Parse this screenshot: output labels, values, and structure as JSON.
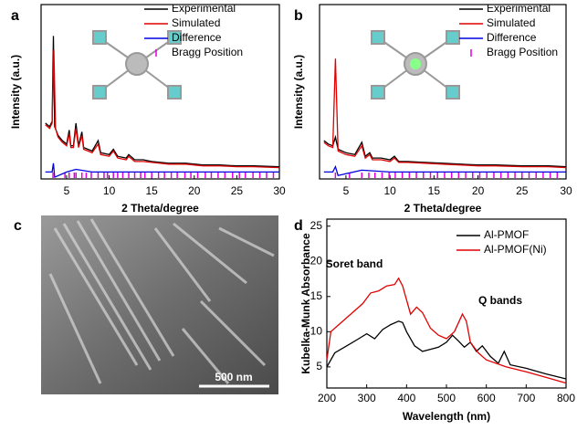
{
  "chart_data": [
    {
      "panel": "a",
      "type": "line",
      "xlabel": "2 Theta/degree",
      "ylabel": "Intensity (a.u.)",
      "xlim": [
        2,
        30
      ],
      "xticks": [
        5,
        10,
        15,
        20,
        25,
        30
      ],
      "ylim": [
        0,
        100
      ],
      "series": [
        {
          "name": "Experimental",
          "color": "#000000",
          "x": [
            2.5,
            3,
            3.3,
            3.45,
            3.6,
            4,
            4.5,
            5,
            5.3,
            5.5,
            5.8,
            6.1,
            6.4,
            6.8,
            7,
            7.5,
            8,
            8.7,
            9,
            10,
            10.5,
            11,
            12,
            12.3,
            13,
            14,
            15,
            17,
            19,
            21,
            23,
            25,
            27,
            30
          ],
          "values": [
            32,
            30,
            33,
            82,
            30,
            25,
            22,
            20,
            28,
            19,
            19,
            32,
            19,
            27,
            18,
            17,
            16,
            22,
            15,
            14,
            17,
            13,
            12,
            14,
            11,
            11,
            10,
            9,
            9,
            8,
            8,
            7.5,
            7.5,
            7
          ]
        },
        {
          "name": "Simulated",
          "color": "#e00000",
          "x": [
            2.5,
            3,
            3.3,
            3.5,
            3.7,
            4,
            4.5,
            5,
            5.3,
            5.5,
            5.8,
            6.1,
            6.4,
            6.8,
            7,
            7.5,
            8,
            8.7,
            9,
            10,
            10.5,
            11,
            12,
            12.3,
            13,
            14,
            15,
            17,
            19,
            21,
            23,
            25,
            27,
            30
          ],
          "values": [
            31,
            29,
            32,
            74,
            29,
            24,
            21,
            19,
            26,
            18,
            18,
            29,
            18,
            25,
            17,
            16,
            15,
            20,
            14,
            13,
            16,
            12,
            11,
            13,
            10,
            10,
            9.5,
            8.5,
            8.5,
            7.5,
            7.5,
            7,
            7,
            6.5
          ]
        },
        {
          "name": "Difference",
          "color": "#0000e0",
          "x": [
            2.5,
            3.3,
            3.45,
            3.6,
            5,
            6.1,
            8,
            10,
            15,
            20,
            30
          ],
          "values": [
            4,
            4,
            9,
            1,
            4,
            5.5,
            4,
            4,
            4,
            4,
            4
          ]
        }
      ],
      "bragg": {
        "name": "Bragg Position",
        "color": "#e000e0",
        "x": [
          3.4,
          4.8,
          5.3,
          5.9,
          6.1,
          6.8,
          7.3,
          7.9,
          8.7,
          9.4,
          9.8,
          10.5,
          11,
          11.6,
          12.3,
          13,
          13.7,
          14.2,
          15,
          15.8,
          16.5,
          17.3,
          18,
          18.9,
          19.6,
          20.4,
          21.3,
          22,
          22.8,
          23.6,
          24.5,
          25.3,
          26,
          26.9,
          27.7,
          28.5,
          29.3
        ]
      }
    },
    {
      "panel": "b",
      "type": "line",
      "xlabel": "2 Theta/degree",
      "ylabel": "Intensity (a.u.)",
      "xlim": [
        2,
        30
      ],
      "xticks": [
        5,
        10,
        15,
        20,
        25,
        30
      ],
      "ylim": [
        0,
        100
      ],
      "series": [
        {
          "name": "Experimental",
          "color": "#000000",
          "x": [
            2.5,
            3,
            3.5,
            3.8,
            4.1,
            5,
            6,
            6.8,
            7.2,
            7.7,
            8,
            9,
            10,
            10.5,
            11,
            12,
            14,
            16,
            18,
            20,
            22,
            25,
            28,
            30
          ],
          "values": [
            22,
            20,
            19,
            24,
            17,
            15,
            14,
            21,
            13,
            15,
            12,
            12,
            11,
            13,
            10,
            10,
            9.5,
            9,
            8.5,
            8,
            8,
            7.5,
            7.5,
            7
          ]
        },
        {
          "name": "Simulated",
          "color": "#e00000",
          "x": [
            2.5,
            3,
            3.5,
            3.8,
            4.1,
            5,
            6,
            6.8,
            7.2,
            7.7,
            8,
            9,
            10,
            10.5,
            11,
            12,
            14,
            16,
            18,
            20,
            22,
            25,
            28,
            30
          ],
          "values": [
            21,
            19,
            18,
            69,
            16,
            14,
            13,
            19,
            12,
            14,
            11,
            11,
            10,
            12,
            9.5,
            9.5,
            9,
            8.5,
            8,
            7.5,
            7.5,
            7,
            7,
            6.5
          ]
        },
        {
          "name": "Difference",
          "color": "#0000e0",
          "x": [
            2.5,
            3.5,
            3.8,
            4.1,
            6.8,
            10,
            15,
            20,
            30
          ],
          "values": [
            4,
            4,
            7,
            2,
            5,
            4,
            4,
            4,
            4
          ]
        }
      ],
      "bragg": {
        "name": "Bragg Position",
        "color": "#e000e0",
        "x": [
          3.8,
          5.4,
          6.8,
          7.6,
          8.3,
          9.1,
          9.9,
          10.6,
          11.4,
          12.2,
          13,
          13.8,
          14.6,
          15.4,
          16.2,
          17,
          17.8,
          18.6,
          19.4,
          20.2,
          21,
          21.8,
          22.6,
          23.4,
          24.2,
          25,
          25.8,
          26.6,
          27.4,
          28.2,
          29
        ]
      }
    },
    {
      "panel": "d",
      "type": "line",
      "xlabel": "Wavelength (nm)",
      "ylabel": "Kubelka-Munk Absorbance",
      "xlim": [
        200,
        800
      ],
      "xticks": [
        200,
        300,
        400,
        500,
        600,
        700,
        800
      ],
      "ylim": [
        2,
        26
      ],
      "yticks": [
        5,
        10,
        15,
        20,
        25
      ],
      "annotations": [
        "Soret band",
        "Q bands"
      ],
      "series": [
        {
          "name": "Al-PMOF",
          "color": "#000000",
          "x": [
            200,
            220,
            250,
            280,
            300,
            320,
            340,
            360,
            380,
            390,
            400,
            420,
            440,
            460,
            480,
            500,
            515,
            530,
            545,
            560,
            575,
            590,
            610,
            630,
            645,
            660,
            700,
            750,
            800
          ],
          "values": [
            5,
            7,
            8,
            9,
            9.7,
            9,
            10.3,
            11,
            11.5,
            11.3,
            10,
            8,
            7.2,
            7.5,
            7.8,
            8.5,
            9.5,
            8.7,
            7.8,
            8.5,
            7.2,
            8,
            6.5,
            5.5,
            7.2,
            5.3,
            4.8,
            4,
            3.3
          ]
        },
        {
          "name": "Al-PMOF(Ni)",
          "color": "#e00000",
          "x": [
            200,
            210,
            230,
            260,
            290,
            310,
            330,
            350,
            370,
            380,
            390,
            410,
            425,
            440,
            460,
            480,
            500,
            520,
            540,
            550,
            560,
            580,
            600,
            650,
            700,
            750,
            800
          ],
          "values": [
            6,
            10,
            11,
            12.5,
            14,
            15.5,
            15.8,
            16.5,
            16.7,
            17.6,
            16.5,
            12.5,
            13.5,
            12.7,
            10.5,
            9.5,
            9,
            10,
            12.5,
            11.5,
            8.5,
            7,
            6,
            5,
            4.3,
            3.5,
            2.7
          ]
        }
      ]
    }
  ],
  "image": {
    "panel": "c",
    "scale_bar": "500 nm"
  }
}
